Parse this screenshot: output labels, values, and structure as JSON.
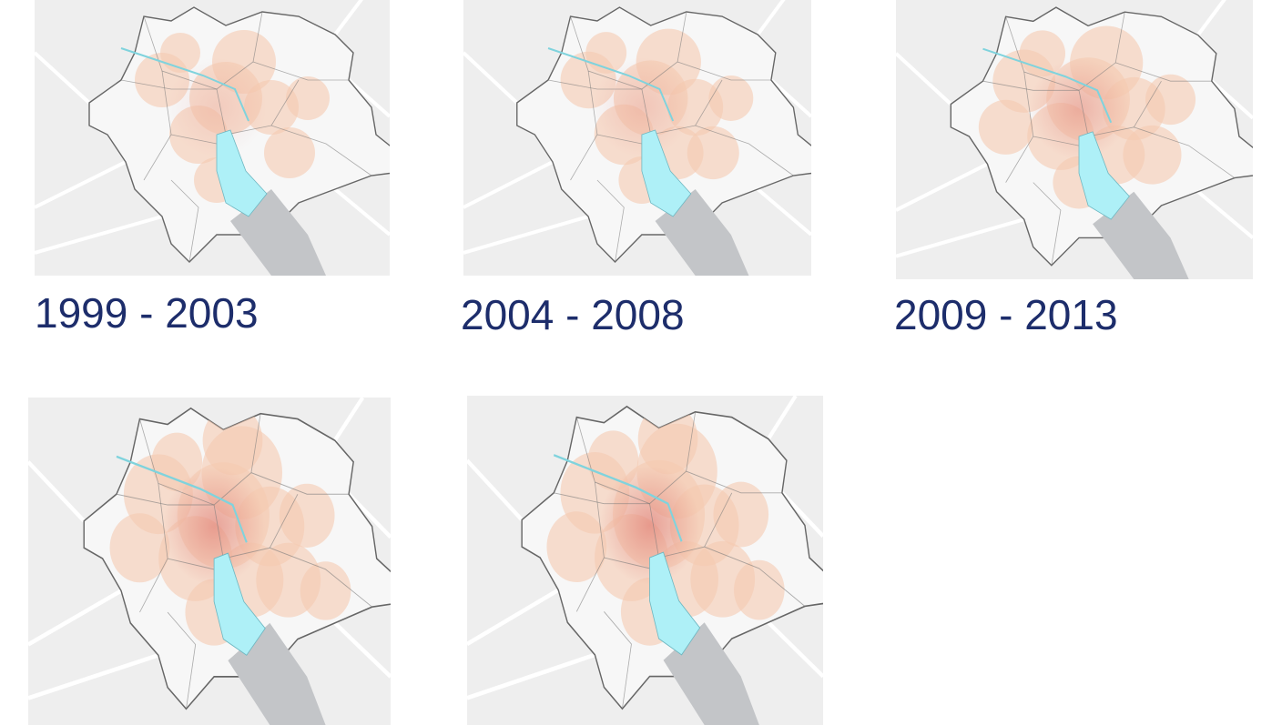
{
  "colors": {
    "caption": "#1d2d6b",
    "basemap": "#eeeeee",
    "city_fill": "#f7f7f7",
    "lake": "#aef0f7",
    "lake_outside": "#c3c5c8",
    "density_low": "#f5c9b0",
    "density_high": "#d9615c"
  },
  "maps": [
    {
      "period": "1999 - 2003",
      "intensity": 0.25
    },
    {
      "period": "2004 - 2008",
      "intensity": 0.35
    },
    {
      "period": "2009 - 2013",
      "intensity": 0.6
    },
    {
      "period": "",
      "intensity": 0.85
    },
    {
      "period": "",
      "intensity": 0.9
    }
  ]
}
